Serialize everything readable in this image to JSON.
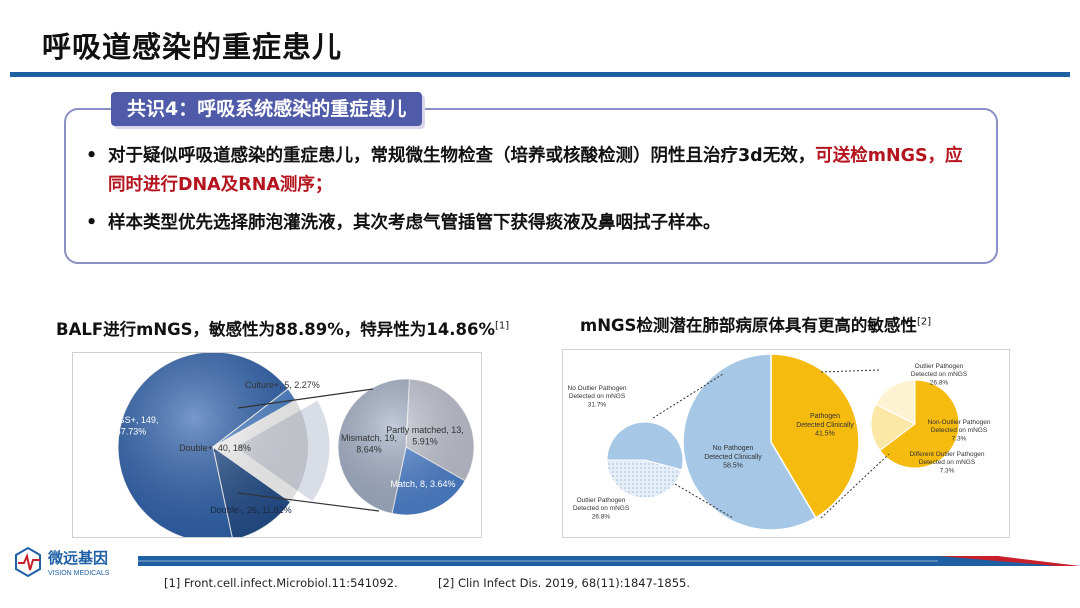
{
  "page_title": "呼吸道感染的重症患儿",
  "consensus": {
    "heading": "共识4：呼吸系统感染的重症患儿",
    "bullet1_plain": "对于疑似呼吸道感染的重症患儿，常规微生物检查（培养或核酸检测）阴性且治疗3d无效，",
    "bullet1_red": "可送检mNGS，应同时进行DNA及RNA测序；",
    "bullet2": "样本类型优先选择肺泡灌洗液，其次考虑气管插管下获得痰液及鼻咽拭子样本。"
  },
  "chart_left": {
    "title": "BALF进行mNGS，敏感性为88.89%，特异性为14.86%",
    "ref_mark": "[1]"
  },
  "chart_right": {
    "title": "mNGS检测潜在肺部病原体具有更高的敏感性",
    "ref_mark": "[2]"
  },
  "chart_data": [
    {
      "type": "pie",
      "title": "BALF进行mNGS，敏感性为88.89%，特异性为14.86%",
      "slices": [
        {
          "label": "mNGS+, 149, 67.73%",
          "value": 67.73,
          "color": "#2e62ad"
        },
        {
          "label": "Culture+, 5, 2.27%",
          "value": 2.27,
          "color": "#4c84cc"
        },
        {
          "label": "Double+, 40, 18%",
          "value": 18,
          "color": "#d9dde6"
        },
        {
          "label": "Double-, 26, 11.82%",
          "value": 11.82,
          "color": "#244f8c"
        }
      ],
      "breakout_of": "Double+, 40, 18%",
      "breakout": [
        {
          "label_lines": [
            "Partly matched, 13,",
            "5.91%"
          ],
          "value": 5.91,
          "color": "#c3c7d4"
        },
        {
          "label_lines": [
            "Mismatch, 19,",
            "8.64%"
          ],
          "value": 8.64,
          "color": "#a4b1c8"
        },
        {
          "label_lines": [
            "Match, 8, 3.64%"
          ],
          "value": 3.64,
          "color": "#4c82d0"
        }
      ]
    },
    {
      "type": "pie",
      "title": "mNGS检测潜在肺部病原体具有更高的敏感性",
      "slices": [
        {
          "label_lines": [
            "Pathogen",
            "Detected Clinically",
            "41.5%"
          ],
          "value": 41.5,
          "color": "#f5bb0f"
        },
        {
          "label_lines": [
            "No Pathogen",
            "Detected Clinically",
            "58.5%"
          ],
          "value": 58.5,
          "color": "#a6c7e6"
        }
      ],
      "left_breakout": [
        {
          "label_lines": [
            "No Outlier Pathogen",
            "Detected on mNGS",
            "31.7%"
          ],
          "value": 31.7,
          "color": "#a6c7e6"
        },
        {
          "label_lines": [
            "Outlier Pathogen",
            "Detected on mNGS",
            "26.8%"
          ],
          "value": 26.8,
          "color": "#dde8f3"
        }
      ],
      "right_breakout": [
        {
          "label_lines": [
            "Outlier Pathogen",
            "Detected on mNGS",
            "26.8%"
          ],
          "value": 26.8,
          "color": "#f5bb0f"
        },
        {
          "label_lines": [
            "Non-Outlier Pathogen",
            "Detected on mNGS",
            "7.3%"
          ],
          "value": 7.3,
          "color": "#fbe7a6"
        },
        {
          "label_lines": [
            "Different Outlier Pathogen",
            "Detected on mNGS",
            "7.3%"
          ],
          "value": 7.3,
          "color": "#fdf3d2"
        }
      ]
    }
  ],
  "footer": {
    "logo_cn": "微远基因",
    "logo_en": "VISION MEDICALS",
    "ref1": "[1]  Front.cell.infect.Microbiol.11:541092.",
    "ref2": "[2] Clin Infect Dis. 2019, 68(11):1847-1855."
  },
  "colors": {
    "title_rule": "#1f5fa4",
    "consensus_head": "#4f5ba8",
    "highlight_red": "#b4141e"
  }
}
